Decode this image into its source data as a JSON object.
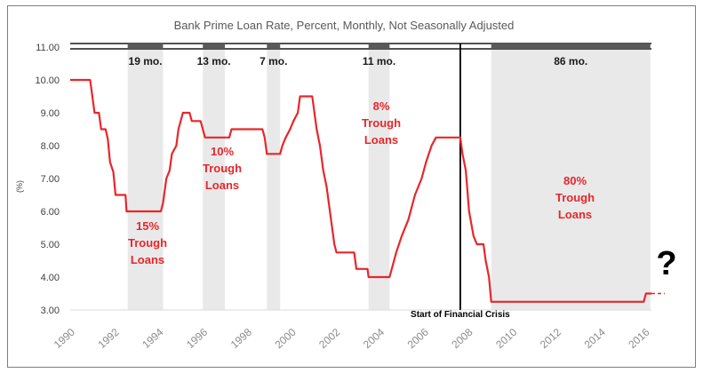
{
  "chart_data": {
    "type": "line",
    "title": "Bank Prime Loan Rate, Percent, Monthly, Not Seasonally Adjusted",
    "ylabel": "(%)",
    "xlabel": "",
    "xlim": [
      1990,
      2016.3
    ],
    "ylim": [
      3.0,
      11.0
    ],
    "y_ticks": [
      "3.00",
      "4.00",
      "5.00",
      "6.00",
      "7.00",
      "8.00",
      "9.00",
      "10.00",
      "11.00"
    ],
    "x_ticks": [
      "1990",
      "1992",
      "1994",
      "1996",
      "1998",
      "2000",
      "2002",
      "2004",
      "2006",
      "2008",
      "2010",
      "2012",
      "2014",
      "2016"
    ],
    "grid": false,
    "colors": {
      "line": "#e8262b",
      "shade": "#e9e9e9",
      "bar": "#595959",
      "axis": "#d9d9d9"
    },
    "series": [
      {
        "points": [
          [
            1990.0,
            10.0
          ],
          [
            1990.9,
            10.0
          ],
          [
            1991.0,
            9.5
          ],
          [
            1991.1,
            9.0
          ],
          [
            1991.3,
            9.0
          ],
          [
            1991.4,
            8.5
          ],
          [
            1991.6,
            8.5
          ],
          [
            1991.7,
            8.2
          ],
          [
            1991.8,
            7.5
          ],
          [
            1991.95,
            7.2
          ],
          [
            1992.05,
            6.5
          ],
          [
            1992.5,
            6.5
          ],
          [
            1992.55,
            6.0
          ],
          [
            1994.1,
            6.0
          ],
          [
            1994.2,
            6.25
          ],
          [
            1994.35,
            7.0
          ],
          [
            1994.5,
            7.25
          ],
          [
            1994.6,
            7.75
          ],
          [
            1994.8,
            8.0
          ],
          [
            1994.9,
            8.5
          ],
          [
            1995.1,
            9.0
          ],
          [
            1995.4,
            9.0
          ],
          [
            1995.5,
            8.75
          ],
          [
            1995.9,
            8.75
          ],
          [
            1996.0,
            8.5
          ],
          [
            1996.1,
            8.25
          ],
          [
            1997.2,
            8.25
          ],
          [
            1997.3,
            8.5
          ],
          [
            1998.7,
            8.5
          ],
          [
            1998.8,
            8.25
          ],
          [
            1998.9,
            7.75
          ],
          [
            1999.5,
            7.75
          ],
          [
            1999.6,
            8.0
          ],
          [
            1999.75,
            8.25
          ],
          [
            1999.95,
            8.5
          ],
          [
            2000.1,
            8.75
          ],
          [
            2000.3,
            9.0
          ],
          [
            2000.4,
            9.5
          ],
          [
            2000.95,
            9.5
          ],
          [
            2001.05,
            9.0
          ],
          [
            2001.15,
            8.5
          ],
          [
            2001.3,
            8.0
          ],
          [
            2001.45,
            7.25
          ],
          [
            2001.6,
            6.75
          ],
          [
            2001.75,
            6.0
          ],
          [
            2001.85,
            5.5
          ],
          [
            2001.95,
            5.0
          ],
          [
            2002.05,
            4.75
          ],
          [
            2002.85,
            4.75
          ],
          [
            2002.95,
            4.25
          ],
          [
            2003.45,
            4.25
          ],
          [
            2003.5,
            4.0
          ],
          [
            2004.45,
            4.0
          ],
          [
            2004.55,
            4.25
          ],
          [
            2004.75,
            4.75
          ],
          [
            2005.0,
            5.25
          ],
          [
            2005.3,
            5.75
          ],
          [
            2005.6,
            6.5
          ],
          [
            2005.9,
            7.0
          ],
          [
            2006.1,
            7.5
          ],
          [
            2006.35,
            8.0
          ],
          [
            2006.55,
            8.25
          ],
          [
            2007.65,
            8.25
          ],
          [
            2007.75,
            7.75
          ],
          [
            2007.9,
            7.25
          ],
          [
            2008.05,
            6.0
          ],
          [
            2008.25,
            5.25
          ],
          [
            2008.4,
            5.0
          ],
          [
            2008.7,
            5.0
          ],
          [
            2008.8,
            4.5
          ],
          [
            2008.95,
            4.0
          ],
          [
            2009.05,
            3.25
          ],
          [
            2015.95,
            3.25
          ],
          [
            2016.05,
            3.5
          ],
          [
            2016.3,
            3.5
          ]
        ]
      }
    ],
    "projection": {
      "from": 2016.3,
      "to": 2016.9,
      "value": 3.5
    },
    "recovery_periods": [
      {
        "start": 1992.6,
        "end": 1994.2,
        "label": "19 mo.",
        "trough_label": [
          "15%",
          "Trough",
          "Loans"
        ],
        "trough_color": "#e8262b"
      },
      {
        "start": 1996.0,
        "end": 1997.0,
        "label": "13 mo.",
        "trough_label": [
          "10%",
          "Trough",
          "Loans"
        ],
        "trough_color": "#e8262b"
      },
      {
        "start": 1998.9,
        "end": 1999.5,
        "label": "7 mo.",
        "trough_label": [],
        "trough_color": "#e8262b"
      },
      {
        "start": 2003.5,
        "end": 2004.45,
        "label": "11 mo.",
        "trough_label": [
          "8%",
          "Trough",
          "Loans"
        ],
        "trough_color": "#e8262b"
      },
      {
        "start": 2009.05,
        "end": 2016.25,
        "label": "86 mo.",
        "trough_label": [
          "80%",
          "Trough",
          "Loans"
        ],
        "trough_color": "#e8262b"
      }
    ],
    "crisis_marker": {
      "x": 2007.65,
      "label": "Start of Financial Crisis"
    },
    "question_mark": "?"
  }
}
